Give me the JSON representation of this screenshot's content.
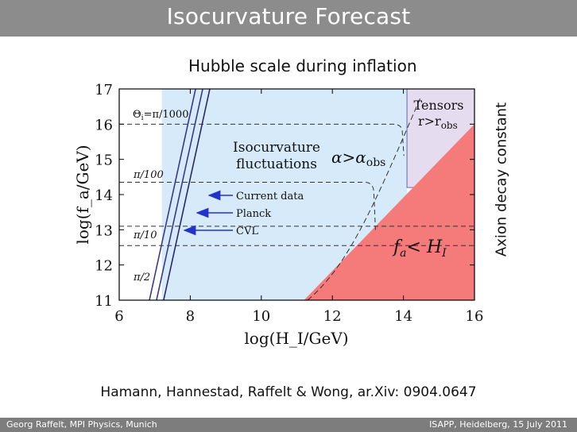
{
  "header": {
    "title": "Isocurvature Forecast"
  },
  "subtitle": "Hubble scale during inflation",
  "side_label": "Axion decay constant",
  "citation": "Hamann, Hannestad, Raffelt & Wong, ar.Xiv: 0904.0647",
  "footer": {
    "left": "Georg Raffelt, MPI Physics, Munich",
    "right": "ISAPP, Heidelberg, 15 July 2011"
  },
  "colors": {
    "isocurvature_region": "#d6eafa",
    "tensor_region": "#e6dcef",
    "fa_lt_hi_region": "#f57a7a",
    "arrow": "#2233cc",
    "titlebar": "#8c8c8c",
    "footer": "#7d7d7d"
  },
  "chart_data": {
    "type": "area",
    "title": "",
    "xlabel": "log(H_I/GeV)",
    "ylabel": "log(f_a/GeV)",
    "xlim": [
      6,
      16
    ],
    "ylim": [
      11,
      17
    ],
    "x_ticks": [
      6,
      8,
      10,
      12,
      14,
      16
    ],
    "y_ticks": [
      11,
      12,
      13,
      14,
      15,
      16,
      17
    ],
    "grid": false,
    "regions": [
      {
        "label": "Isocurvature fluctuations",
        "bounds": {
          "x": [
            7.2,
            14.1
          ],
          "y": [
            11,
            17
          ]
        }
      },
      {
        "label": "α>α_obs",
        "bounds": {}
      },
      {
        "label": "Tensors r>r_obs",
        "x_min": 14.1,
        "y_min": 14.2
      },
      {
        "label": "f_a< H_I",
        "boundary": [
          [
            11.2,
            11
          ],
          [
            16,
            16
          ]
        ]
      }
    ],
    "theta_lines": [
      {
        "label": "Θ_i=π/1000",
        "y": 16.0
      },
      {
        "label": "π/100",
        "y": 14.35
      },
      {
        "label": "π/10",
        "y": 13.1
      },
      {
        "label": "π/2",
        "y": 12.55
      }
    ],
    "constraint_lines": [
      {
        "name": "Current data",
        "x_at_ymin": 7.25,
        "x_at_ymax": 8.55
      },
      {
        "name": "Planck",
        "x_at_ymin": 7.05,
        "x_at_ymax": 8.35
      },
      {
        "name": "CVL",
        "x_at_ymin": 6.85,
        "x_at_ymax": 8.15
      }
    ],
    "text": {
      "iso1": "Isocurvature",
      "iso2": "fluctuations",
      "alpha": "α>α",
      "alpha_sub": "obs",
      "tensors1": "Tensors",
      "tensors2_main": "r>r",
      "tensors2_sub": "obs",
      "fa_main": "f",
      "fa_sub": "a",
      "fa_rest": "< H",
      "fa_rest_sub": "I",
      "theta0": "Θ",
      "theta0_sub": "i",
      "theta0_rest": "=π/1000",
      "theta1": "π/100",
      "theta2": "π/10",
      "theta3": "π/2",
      "current": "Current data",
      "planck": "Planck",
      "cvl": "CVL"
    }
  }
}
